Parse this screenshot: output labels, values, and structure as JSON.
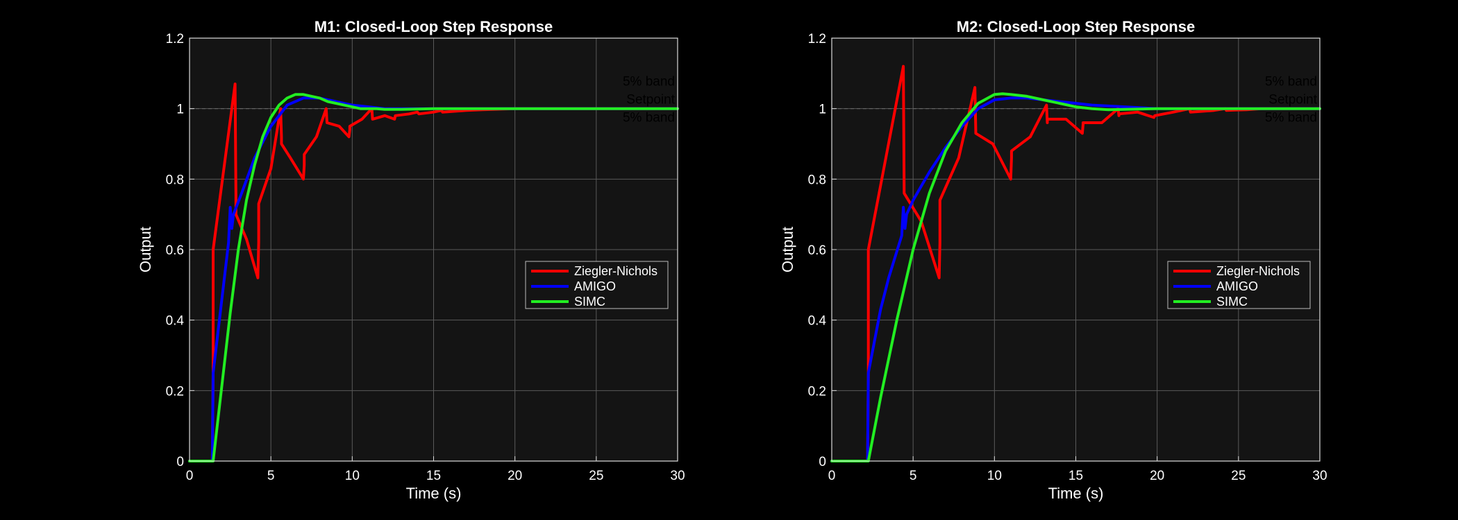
{
  "chart_data": [
    {
      "type": "line",
      "title": "M1: Closed-Loop Step Response",
      "xlabel": "Time (s)",
      "ylabel": "Output",
      "xlim": [
        0,
        30
      ],
      "ylim": [
        0,
        1.2
      ],
      "xticks": [
        "0",
        "5",
        "10",
        "15",
        "20",
        "25",
        "30"
      ],
      "yticks": [
        "0",
        "0.2",
        "0.4",
        "0.6",
        "0.8",
        "1",
        "1.2"
      ],
      "grid": true,
      "legend_position": "center-right",
      "annotations": [
        "5% band",
        "Setpoint",
        "5% band"
      ],
      "setpoint": 1.0,
      "series": [
        {
          "name": "Ziegler-Nichols",
          "color": "#ff0000",
          "x": [
            0,
            1.4,
            1.45,
            1.45,
            2.8,
            2.85,
            2.85,
            3.5,
            4.2,
            4.25,
            4.25,
            5.0,
            5.6,
            5.65,
            5.65,
            6.2,
            7.0,
            7.05,
            7.05,
            7.8,
            8.4,
            8.45,
            8.45,
            9.2,
            9.8,
            9.85,
            9.85,
            10.6,
            11.2,
            11.25,
            11.25,
            12.0,
            12.6,
            12.65,
            12.65,
            13.5,
            14.0,
            14.1,
            14.1,
            15.0,
            15.5,
            15.55,
            15.55,
            17.0,
            18.0,
            20.0,
            25.0,
            30.0
          ],
          "y": [
            0,
            0,
            0.25,
            0.6,
            1.07,
            0.75,
            0.7,
            0.63,
            0.52,
            0.62,
            0.73,
            0.83,
            1.0,
            0.92,
            0.9,
            0.86,
            0.8,
            0.84,
            0.87,
            0.92,
            1.0,
            0.96,
            0.96,
            0.95,
            0.92,
            0.94,
            0.95,
            0.97,
            1.0,
            0.97,
            0.97,
            0.98,
            0.97,
            0.98,
            0.98,
            0.985,
            0.99,
            0.985,
            0.985,
            0.99,
            0.995,
            0.99,
            0.99,
            0.995,
            0.997,
            1.0,
            1.0,
            1.0
          ]
        },
        {
          "name": "AMIGO",
          "color": "#0000ff",
          "x": [
            0,
            1.4,
            1.45,
            2.4,
            2.5,
            2.6,
            2.7,
            3.2,
            4.0,
            5.0,
            6.0,
            7.0,
            8.0,
            9.0,
            10.0,
            11.0,
            12.0,
            13.0,
            15.0,
            20.0,
            25.0,
            30.0
          ],
          "y": [
            0,
            0,
            0.25,
            0.62,
            0.72,
            0.66,
            0.7,
            0.76,
            0.86,
            0.95,
            1.01,
            1.03,
            1.03,
            1.02,
            1.01,
            1.005,
            1.0,
            1.0,
            1.0,
            1.0,
            1.0,
            1.0
          ],
          "smooth": false
        },
        {
          "name": "SIMC",
          "color": "#22ee22",
          "x": [
            0,
            1.45,
            2.0,
            2.5,
            3.0,
            3.5,
            4.0,
            4.5,
            5.0,
            5.5,
            6.0,
            6.5,
            7.0,
            7.5,
            8.0,
            8.5,
            9.0,
            9.5,
            10.0,
            10.5,
            11.0,
            11.5,
            12.0,
            13.0,
            14.0,
            15.0,
            18.0,
            20.0,
            25.0,
            30.0
          ],
          "y": [
            0,
            0,
            0.22,
            0.42,
            0.6,
            0.74,
            0.84,
            0.92,
            0.975,
            1.01,
            1.03,
            1.04,
            1.04,
            1.035,
            1.03,
            1.02,
            1.015,
            1.01,
            1.005,
            1.0,
            1.0,
            1.0,
            0.998,
            0.998,
            0.999,
            1.0,
            1.0,
            1.0,
            1.0,
            1.0
          ]
        }
      ]
    },
    {
      "type": "line",
      "title": "M2: Closed-Loop Step Response",
      "xlabel": "Time (s)",
      "ylabel": "Output",
      "xlim": [
        0,
        30
      ],
      "ylim": [
        0,
        1.2
      ],
      "xticks": [
        "0",
        "5",
        "10",
        "15",
        "20",
        "25",
        "30"
      ],
      "yticks": [
        "0",
        "0.2",
        "0.4",
        "0.6",
        "0.8",
        "1",
        "1.2"
      ],
      "grid": true,
      "legend_position": "center-right",
      "annotations": [
        "5% band",
        "Setpoint",
        "5% band"
      ],
      "setpoint": 1.0,
      "series": [
        {
          "name": "Ziegler-Nichols",
          "color": "#ff0000",
          "x": [
            0,
            2.2,
            2.25,
            2.25,
            4.4,
            4.45,
            4.45,
            5.5,
            6.6,
            6.65,
            6.65,
            7.8,
            8.8,
            8.85,
            8.85,
            9.9,
            11.0,
            11.05,
            11.05,
            12.2,
            13.2,
            13.25,
            13.25,
            14.4,
            15.4,
            15.45,
            15.45,
            16.6,
            17.6,
            17.65,
            17.65,
            18.8,
            19.8,
            19.85,
            19.85,
            21.0,
            22.0,
            22.05,
            22.05,
            23.5,
            24.2,
            24.25,
            24.25,
            25.5,
            26.4,
            30.0
          ],
          "y": [
            0,
            0,
            0.25,
            0.6,
            1.12,
            0.76,
            0.76,
            0.68,
            0.52,
            0.62,
            0.74,
            0.86,
            1.06,
            0.94,
            0.93,
            0.9,
            0.8,
            0.86,
            0.88,
            0.92,
            1.01,
            0.96,
            0.97,
            0.97,
            0.93,
            0.955,
            0.96,
            0.96,
            1.0,
            0.98,
            0.985,
            0.99,
            0.975,
            0.98,
            0.98,
            0.99,
            1.0,
            0.99,
            0.99,
            0.995,
            1.0,
            0.995,
            0.995,
            0.997,
            1.0,
            1.0
          ]
        },
        {
          "name": "AMIGO",
          "color": "#0000ff",
          "x": [
            0,
            2.2,
            2.25,
            3.0,
            3.5,
            4.3,
            4.4,
            4.5,
            4.6,
            5.0,
            6.0,
            7.0,
            8.0,
            9.0,
            10.0,
            11.0,
            12.0,
            13.0,
            14.0,
            15.0,
            16.0,
            18.0,
            20.0,
            25.0,
            30.0
          ],
          "y": [
            0,
            0,
            0.25,
            0.43,
            0.52,
            0.64,
            0.72,
            0.66,
            0.7,
            0.74,
            0.82,
            0.89,
            0.95,
            1.0,
            1.025,
            1.03,
            1.03,
            1.025,
            1.02,
            1.015,
            1.01,
            1.005,
            1.0,
            1.0,
            1.0
          ]
        },
        {
          "name": "SIMC",
          "color": "#22ee22",
          "x": [
            0,
            2.25,
            3.0,
            4.0,
            5.0,
            6.0,
            7.0,
            8.0,
            9.0,
            10.0,
            10.5,
            11.0,
            12.0,
            13.0,
            14.0,
            15.0,
            16.0,
            17.0,
            18.0,
            20.0,
            25.0,
            30.0
          ],
          "y": [
            0,
            0,
            0.18,
            0.4,
            0.6,
            0.76,
            0.88,
            0.96,
            1.015,
            1.04,
            1.042,
            1.04,
            1.035,
            1.025,
            1.015,
            1.005,
            1.0,
            0.997,
            0.998,
            1.0,
            1.0,
            1.0
          ]
        }
      ]
    }
  ]
}
